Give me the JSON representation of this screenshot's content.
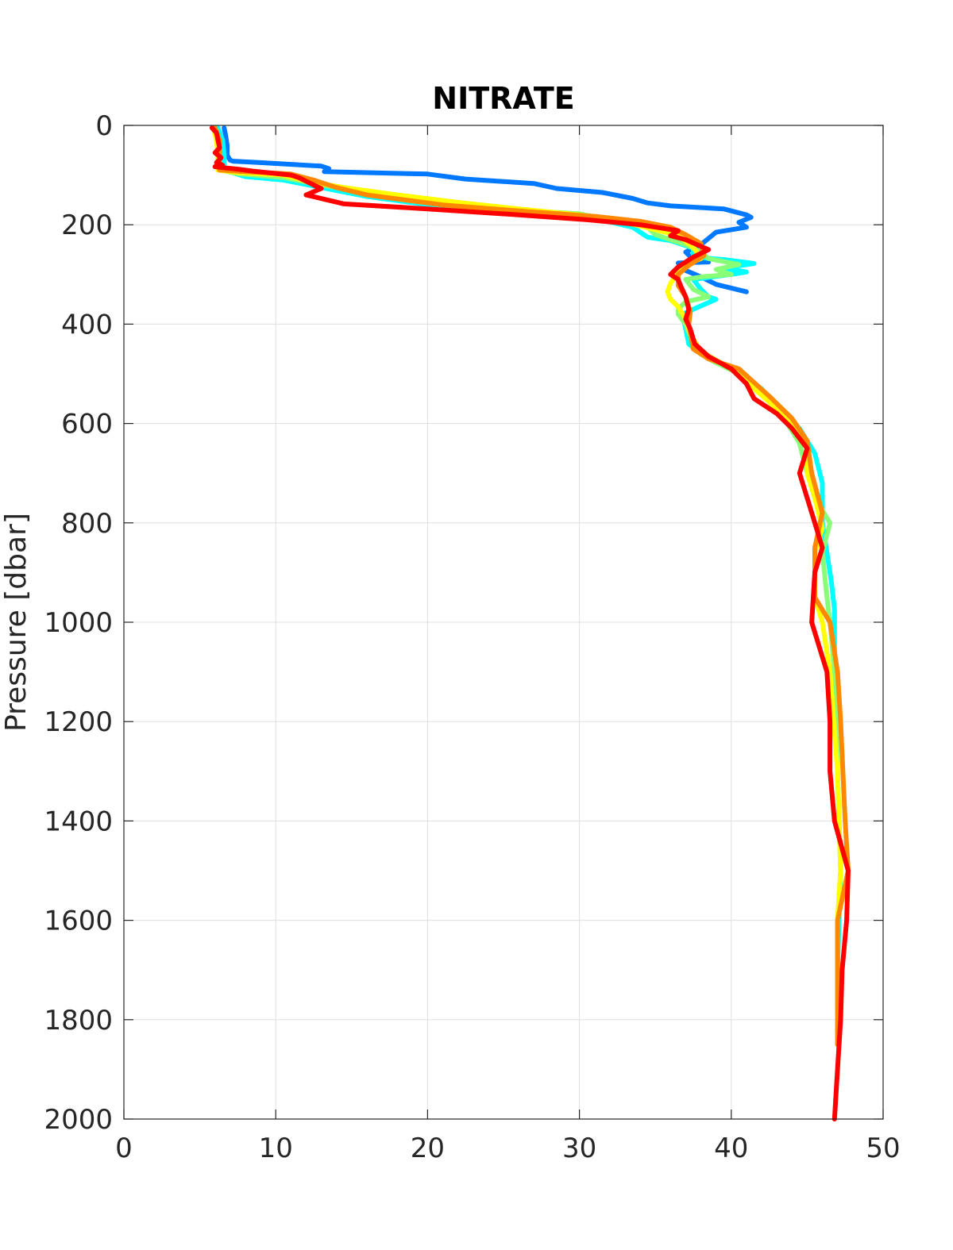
{
  "chart_data": {
    "type": "line",
    "title": "NITRATE",
    "xlabel": "",
    "ylabel": "Pressure [dbar]",
    "xlim": [
      0,
      50
    ],
    "ylim": [
      0,
      2000
    ],
    "y_reversed": true,
    "grid": true,
    "legend": "none",
    "x_ticks": [
      "0",
      "10",
      "20",
      "30",
      "40",
      "50"
    ],
    "y_ticks": [
      "0",
      "200",
      "400",
      "600",
      "800",
      "1000",
      "1200",
      "1400",
      "1600",
      "1800",
      "2000"
    ],
    "series": [
      {
        "color": "#0078ff",
        "points": [
          [
            6.6,
            5
          ],
          [
            6.7,
            20
          ],
          [
            6.8,
            40
          ],
          [
            6.8,
            60
          ],
          [
            7.0,
            70
          ],
          [
            7.2,
            72
          ],
          [
            9.0,
            75
          ],
          [
            13.0,
            82
          ],
          [
            13.5,
            87
          ],
          [
            13.2,
            93
          ],
          [
            20.0,
            98
          ],
          [
            22.5,
            108
          ],
          [
            27.0,
            117
          ],
          [
            28.5,
            127
          ],
          [
            31.5,
            135
          ],
          [
            33.5,
            147
          ],
          [
            34.5,
            156
          ],
          [
            36.0,
            162
          ],
          [
            39.5,
            168
          ],
          [
            41.0,
            180
          ],
          [
            41.3,
            185
          ],
          [
            40.5,
            195
          ],
          [
            41.0,
            205
          ],
          [
            39.0,
            215
          ],
          [
            38.0,
            240
          ],
          [
            37.0,
            255
          ],
          [
            37.5,
            270
          ],
          [
            38.5,
            275
          ],
          [
            36.5,
            277
          ],
          [
            37.0,
            292
          ],
          [
            38.0,
            305
          ],
          [
            39.0,
            320
          ],
          [
            41.0,
            335
          ]
        ]
      },
      {
        "color": "#00ffff",
        "points": [
          [
            6.2,
            5
          ],
          [
            6.5,
            30
          ],
          [
            6.6,
            60
          ],
          [
            6.6,
            90
          ],
          [
            8.0,
            103
          ],
          [
            10.5,
            110
          ],
          [
            13.0,
            125
          ],
          [
            16.0,
            143
          ],
          [
            22.0,
            168
          ],
          [
            30.0,
            180
          ],
          [
            33.5,
            205
          ],
          [
            34.5,
            225
          ],
          [
            36.0,
            232
          ],
          [
            37.5,
            247
          ],
          [
            37.5,
            265
          ],
          [
            39.5,
            270
          ],
          [
            41.5,
            278
          ],
          [
            39.5,
            287
          ],
          [
            41.0,
            295
          ],
          [
            40.0,
            300
          ],
          [
            37.5,
            310
          ],
          [
            38.0,
            330
          ],
          [
            38.5,
            345
          ],
          [
            39.0,
            350
          ],
          [
            37.5,
            370
          ],
          [
            36.8,
            380
          ],
          [
            37.0,
            410
          ],
          [
            37.2,
            440
          ],
          [
            38.0,
            460
          ],
          [
            40.0,
            490
          ],
          [
            42.0,
            530
          ],
          [
            43.0,
            570
          ],
          [
            44.5,
            610
          ],
          [
            45.5,
            660
          ],
          [
            46.0,
            720
          ],
          [
            46.0,
            800
          ],
          [
            46.3,
            860
          ],
          [
            46.6,
            920
          ],
          [
            46.8,
            975
          ],
          [
            46.8,
            1100
          ],
          [
            47.0,
            1300
          ],
          [
            47.2,
            1500
          ],
          [
            47.0,
            1700
          ],
          [
            47.0,
            1850
          ]
        ]
      },
      {
        "color": "#88ff77",
        "points": [
          [
            6.0,
            5
          ],
          [
            6.2,
            30
          ],
          [
            6.3,
            60
          ],
          [
            6.3,
            90
          ],
          [
            7.5,
            97
          ],
          [
            10.5,
            105
          ],
          [
            13.0,
            120
          ],
          [
            17.0,
            140
          ],
          [
            22.0,
            163
          ],
          [
            30.0,
            178
          ],
          [
            34.5,
            205
          ],
          [
            35.0,
            220
          ],
          [
            36.0,
            230
          ],
          [
            37.0,
            240
          ],
          [
            38.0,
            255
          ],
          [
            38.5,
            268
          ],
          [
            40.5,
            280
          ],
          [
            39.0,
            290
          ],
          [
            40.0,
            300
          ],
          [
            38.0,
            305
          ],
          [
            37.0,
            310
          ],
          [
            37.5,
            330
          ],
          [
            38.5,
            345
          ],
          [
            37.0,
            355
          ],
          [
            36.5,
            370
          ],
          [
            36.5,
            380
          ],
          [
            37.0,
            400
          ],
          [
            37.5,
            440
          ],
          [
            38.5,
            470
          ],
          [
            40.5,
            500
          ],
          [
            42.0,
            540
          ],
          [
            43.5,
            590
          ],
          [
            44.5,
            640
          ],
          [
            45.0,
            700
          ],
          [
            45.5,
            750
          ],
          [
            46.5,
            800
          ],
          [
            46.0,
            860
          ],
          [
            46.3,
            950
          ],
          [
            46.5,
            1000
          ],
          [
            46.8,
            1100
          ],
          [
            47.0,
            1300
          ],
          [
            47.2,
            1500
          ],
          [
            47.0,
            1600
          ],
          [
            47.0,
            1850
          ]
        ]
      },
      {
        "color": "#ffff00",
        "points": [
          [
            5.9,
            5
          ],
          [
            6.1,
            30
          ],
          [
            6.2,
            60
          ],
          [
            6.2,
            90
          ],
          [
            7.5,
            95
          ],
          [
            10.5,
            100
          ],
          [
            12.0,
            112
          ],
          [
            14.5,
            125
          ],
          [
            18.0,
            140
          ],
          [
            22.0,
            155
          ],
          [
            26.0,
            168
          ],
          [
            30.0,
            180
          ],
          [
            33.0,
            195
          ],
          [
            35.0,
            210
          ],
          [
            36.5,
            222
          ],
          [
            37.5,
            245
          ],
          [
            38.0,
            268
          ],
          [
            37.0,
            280
          ],
          [
            36.5,
            295
          ],
          [
            36.0,
            318
          ],
          [
            35.8,
            335
          ],
          [
            36.0,
            350
          ],
          [
            36.5,
            365
          ],
          [
            37.0,
            390
          ],
          [
            37.3,
            420
          ],
          [
            38.0,
            455
          ],
          [
            40.0,
            490
          ],
          [
            41.5,
            530
          ],
          [
            43.0,
            570
          ],
          [
            44.5,
            620
          ],
          [
            45.0,
            650
          ],
          [
            45.0,
            700
          ],
          [
            45.5,
            750
          ],
          [
            46.0,
            810
          ],
          [
            45.5,
            860
          ],
          [
            45.5,
            950
          ],
          [
            46.0,
            1000
          ],
          [
            46.5,
            1100
          ],
          [
            47.0,
            1300
          ],
          [
            47.2,
            1500
          ],
          [
            47.0,
            1600
          ],
          [
            47.0,
            1850
          ]
        ]
      },
      {
        "color": "#ff8800",
        "points": [
          [
            6.0,
            5
          ],
          [
            6.3,
            30
          ],
          [
            6.3,
            60
          ],
          [
            6.3,
            90
          ],
          [
            8.0,
            93
          ],
          [
            11.0,
            98
          ],
          [
            12.5,
            110
          ],
          [
            14.0,
            125
          ],
          [
            16.0,
            140
          ],
          [
            21.0,
            160
          ],
          [
            26.0,
            172
          ],
          [
            31.0,
            183
          ],
          [
            34.0,
            193
          ],
          [
            36.0,
            205
          ],
          [
            37.0,
            220
          ],
          [
            38.0,
            238
          ],
          [
            38.2,
            262
          ],
          [
            37.2,
            282
          ],
          [
            36.5,
            300
          ],
          [
            36.5,
            322
          ],
          [
            37.0,
            345
          ],
          [
            37.3,
            375
          ],
          [
            37.2,
            400
          ],
          [
            37.5,
            450
          ],
          [
            38.5,
            470
          ],
          [
            40.5,
            490
          ],
          [
            42.5,
            545
          ],
          [
            44.0,
            590
          ],
          [
            45.0,
            635
          ],
          [
            45.3,
            700
          ],
          [
            46.0,
            780
          ],
          [
            45.5,
            850
          ],
          [
            45.5,
            950
          ],
          [
            46.5,
            1000
          ],
          [
            47.0,
            1100
          ],
          [
            47.2,
            1200
          ],
          [
            47.5,
            1400
          ],
          [
            47.7,
            1500
          ],
          [
            47.0,
            1600
          ],
          [
            47.0,
            1850
          ]
        ]
      },
      {
        "color": "#ff0000",
        "points": [
          [
            5.8,
            5
          ],
          [
            6.1,
            15
          ],
          [
            6.2,
            30
          ],
          [
            6.3,
            45
          ],
          [
            6.0,
            55
          ],
          [
            6.4,
            65
          ],
          [
            6.1,
            75
          ],
          [
            6.5,
            80
          ],
          [
            6.0,
            83
          ],
          [
            6.5,
            85
          ],
          [
            7.5,
            88
          ],
          [
            8.5,
            92
          ],
          [
            11.0,
            100
          ],
          [
            11.5,
            105
          ],
          [
            12.5,
            120
          ],
          [
            13.0,
            127
          ],
          [
            12.0,
            140
          ],
          [
            14.5,
            158
          ],
          [
            20.0,
            168
          ],
          [
            26.0,
            180
          ],
          [
            30.5,
            190
          ],
          [
            34.0,
            200
          ],
          [
            36.5,
            212
          ],
          [
            36.0,
            222
          ],
          [
            37.0,
            230
          ],
          [
            38.5,
            250
          ],
          [
            37.5,
            265
          ],
          [
            36.5,
            285
          ],
          [
            36.0,
            300
          ],
          [
            36.5,
            310
          ],
          [
            36.7,
            325
          ],
          [
            37.0,
            345
          ],
          [
            37.2,
            370
          ],
          [
            37.0,
            390
          ],
          [
            37.3,
            410
          ],
          [
            37.6,
            440
          ],
          [
            38.5,
            465
          ],
          [
            40.0,
            490
          ],
          [
            41.0,
            520
          ],
          [
            41.5,
            550
          ],
          [
            43.0,
            580
          ],
          [
            44.0,
            610
          ],
          [
            45.0,
            650
          ],
          [
            44.5,
            700
          ],
          [
            45.0,
            750
          ],
          [
            45.5,
            800
          ],
          [
            46.0,
            850
          ],
          [
            45.5,
            900
          ],
          [
            45.3,
            1000
          ],
          [
            46.3,
            1100
          ],
          [
            46.5,
            1200
          ],
          [
            46.5,
            1300
          ],
          [
            46.8,
            1400
          ],
          [
            47.7,
            1500
          ],
          [
            47.6,
            1600
          ],
          [
            47.3,
            1700
          ],
          [
            47.2,
            1800
          ],
          [
            47.0,
            1900
          ],
          [
            46.8,
            2000
          ]
        ]
      }
    ]
  }
}
